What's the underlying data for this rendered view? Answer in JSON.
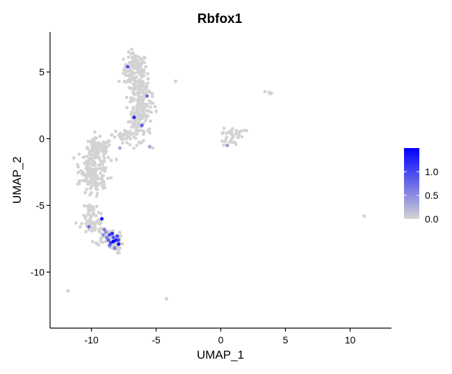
{
  "chart_data": {
    "type": "scatter",
    "title": "Rbfox1",
    "xlabel": "UMAP_1",
    "ylabel": "UMAP_2",
    "xlim": [
      -13.2,
      13.2
    ],
    "ylim": [
      -14.2,
      8.0
    ],
    "xticks": [
      {
        "value": -10,
        "label": "-10"
      },
      {
        "value": -5,
        "label": "-5"
      },
      {
        "value": 0,
        "label": "0"
      },
      {
        "value": 5,
        "label": "5"
      },
      {
        "value": 10,
        "label": "10"
      }
    ],
    "yticks": [
      {
        "value": 5,
        "label": "5"
      },
      {
        "value": 0,
        "label": "0"
      },
      {
        "value": -5,
        "label": "-5"
      },
      {
        "value": -10,
        "label": "-10"
      }
    ],
    "grid": false,
    "legend_position": "right",
    "color_scale": {
      "min": 0,
      "max": 1.5,
      "low_color": "#d3d3d3",
      "high_color": "#0000ff",
      "ticks": [
        {
          "value": 1.0,
          "label": "1.0"
        },
        {
          "value": 0.5,
          "label": "0.5"
        },
        {
          "value": 0.0,
          "label": "0.0"
        }
      ]
    },
    "clusters": [
      {
        "cx": -6.6,
        "cy": 5.2,
        "sx": 0.45,
        "sy": 0.6,
        "n": 110
      },
      {
        "cx": -6.3,
        "cy": 3.6,
        "sx": 0.45,
        "sy": 0.6,
        "n": 95
      },
      {
        "cx": -6.1,
        "cy": 2.2,
        "sx": 0.4,
        "sy": 0.55,
        "n": 75
      },
      {
        "cx": -6.5,
        "cy": 0.6,
        "sx": 0.55,
        "sy": 0.5,
        "n": 55
      },
      {
        "cx": -7.5,
        "cy": 0.3,
        "sx": 0.45,
        "sy": 0.3,
        "n": 25
      },
      {
        "cx": -9.5,
        "cy": -0.8,
        "sx": 0.55,
        "sy": 0.4,
        "n": 80
      },
      {
        "cx": -9.8,
        "cy": -2.0,
        "sx": 0.55,
        "sy": 0.55,
        "n": 110
      },
      {
        "cx": -9.9,
        "cy": -3.2,
        "sx": 0.5,
        "sy": 0.5,
        "n": 80
      },
      {
        "cx": -10.0,
        "cy": -5.4,
        "sx": 0.35,
        "sy": 0.35,
        "n": 30
      },
      {
        "cx": -9.9,
        "cy": -6.4,
        "sx": 0.45,
        "sy": 0.35,
        "n": 40
      },
      {
        "cx": -8.8,
        "cy": -7.3,
        "sx": 0.45,
        "sy": 0.35,
        "n": 45
      },
      {
        "cx": -8.3,
        "cy": -8.0,
        "sx": 0.3,
        "sy": 0.3,
        "n": 40
      },
      {
        "cx": 1.0,
        "cy": 0.4,
        "sx": 0.45,
        "sy": 0.2,
        "n": 25
      },
      {
        "cx": 0.6,
        "cy": -0.3,
        "sx": 0.3,
        "sy": 0.2,
        "n": 10
      },
      {
        "cx": 3.7,
        "cy": 3.5,
        "sx": 0.15,
        "sy": 0.08,
        "n": 5
      }
    ],
    "points": [
      {
        "x": -3.5,
        "y": 4.3,
        "v": 0
      },
      {
        "x": -11.8,
        "y": -11.4,
        "v": 0
      },
      {
        "x": -4.2,
        "y": -12.0,
        "v": 0
      },
      {
        "x": 11.1,
        "y": -5.8,
        "v": 0
      },
      {
        "x": -7.2,
        "y": 5.4,
        "v": 0.9
      },
      {
        "x": -6.7,
        "y": 1.6,
        "v": 1.2
      },
      {
        "x": -6.1,
        "y": 1.0,
        "v": 0.8
      },
      {
        "x": -5.7,
        "y": 3.2,
        "v": 0.7
      },
      {
        "x": -9.2,
        "y": -6.0,
        "v": 1.3
      },
      {
        "x": -9.0,
        "y": -6.8,
        "v": 0.6
      },
      {
        "x": -10.2,
        "y": -6.6,
        "v": 0.7
      },
      {
        "x": -8.9,
        "y": -7.0,
        "v": 0.5
      },
      {
        "x": -8.6,
        "y": -7.2,
        "v": 1.0
      },
      {
        "x": -8.3,
        "y": -7.4,
        "v": 0.9
      },
      {
        "x": -8.5,
        "y": -7.8,
        "v": 1.1
      },
      {
        "x": -8.1,
        "y": -7.6,
        "v": 1.3
      },
      {
        "x": -7.9,
        "y": -7.9,
        "v": 1.4
      },
      {
        "x": -8.4,
        "y": -7.1,
        "v": 1.2
      },
      {
        "x": -8.7,
        "y": -7.6,
        "v": 0.8
      },
      {
        "x": -8.2,
        "y": -8.2,
        "v": 0.6
      },
      {
        "x": -8.0,
        "y": -7.3,
        "v": 1.0
      },
      {
        "x": -8.6,
        "y": -8.0,
        "v": 0.7
      },
      {
        "x": -7.9,
        "y": -7.6,
        "v": 0.9
      },
      {
        "x": -8.3,
        "y": -7.7,
        "v": 1.5
      },
      {
        "x": -8.8,
        "y": -7.4,
        "v": 0.6
      },
      {
        "x": -9.1,
        "y": -7.2,
        "v": 0.5
      },
      {
        "x": 0.5,
        "y": -0.5,
        "v": 0.4
      },
      {
        "x": -5.5,
        "y": -0.6,
        "v": 0.3
      },
      {
        "x": -7.8,
        "y": -0.7,
        "v": 0.3
      }
    ]
  }
}
